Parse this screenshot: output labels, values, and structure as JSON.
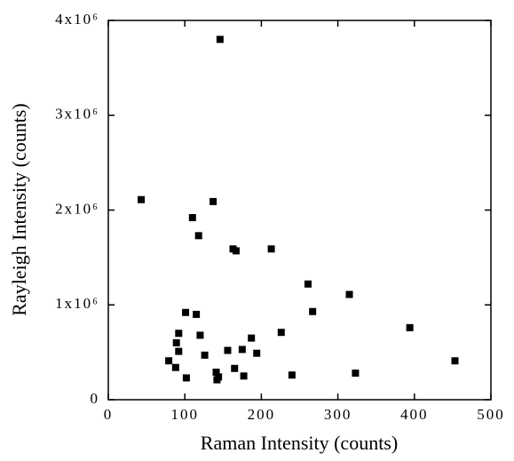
{
  "chart_data": {
    "type": "scatter",
    "x_label": "Raman Intensity (counts)",
    "y_label": "Rayleigh Intensity (counts)",
    "color": "#000000",
    "xlim": [
      0,
      500
    ],
    "xticks": [
      0,
      100,
      200,
      300,
      400,
      500
    ],
    "ylim": [
      0,
      4000000
    ],
    "yticks": [
      0,
      {
        "value": 1000000,
        "label": "1x10⁶"
      },
      {
        "value": 2000000,
        "label": "2x10⁶"
      },
      {
        "value": 3000000,
        "label": "3x10⁶"
      },
      {
        "value": 4000000,
        "label": "4x10⁶"
      }
    ],
    "x": [
      43,
      146,
      110,
      137,
      118,
      163,
      167,
      213,
      261,
      315,
      267,
      394,
      453,
      101,
      115,
      92,
      120,
      187,
      226,
      89,
      92,
      126,
      156,
      175,
      194,
      79,
      88,
      165,
      141,
      144,
      142,
      102,
      177,
      240,
      323
    ],
    "values": [
      2110000,
      3800000,
      1920000,
      2090000,
      1730000,
      1590000,
      1570000,
      1590000,
      1220000,
      1110000,
      930000,
      760000,
      410000,
      920000,
      900000,
      700000,
      680000,
      650000,
      710000,
      600000,
      510000,
      470000,
      520000,
      530000,
      490000,
      410000,
      340000,
      330000,
      290000,
      240000,
      210000,
      230000,
      250000,
      260000,
      280000
    ]
  }
}
